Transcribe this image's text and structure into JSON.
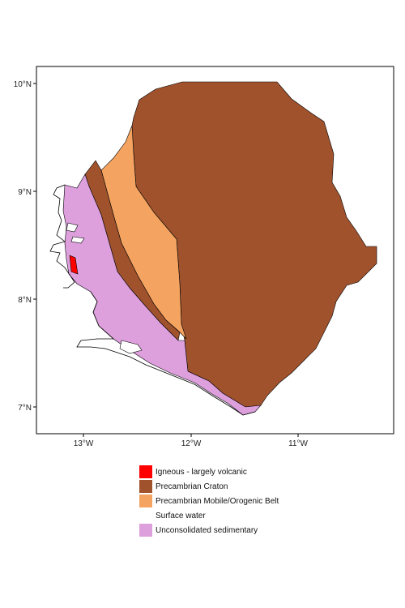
{
  "axes": {
    "x_ticks": [
      "13°W",
      "12°W",
      "11°W"
    ],
    "y_ticks": [
      "10°N",
      "9°N",
      "8°N",
      "7°N"
    ]
  },
  "legend": [
    {
      "label": "Igneous - largely volcanic",
      "color": "#ff0000"
    },
    {
      "label": "Precambrian Craton",
      "color": "#a0522d"
    },
    {
      "label": "Precambrian Mobile/Orogenic Belt",
      "color": "#f4a460"
    },
    {
      "label": "Surface water",
      "color": "#ffffff"
    },
    {
      "label": "Unconsolidated sedimentary",
      "color": "#dda0dd"
    }
  ]
}
